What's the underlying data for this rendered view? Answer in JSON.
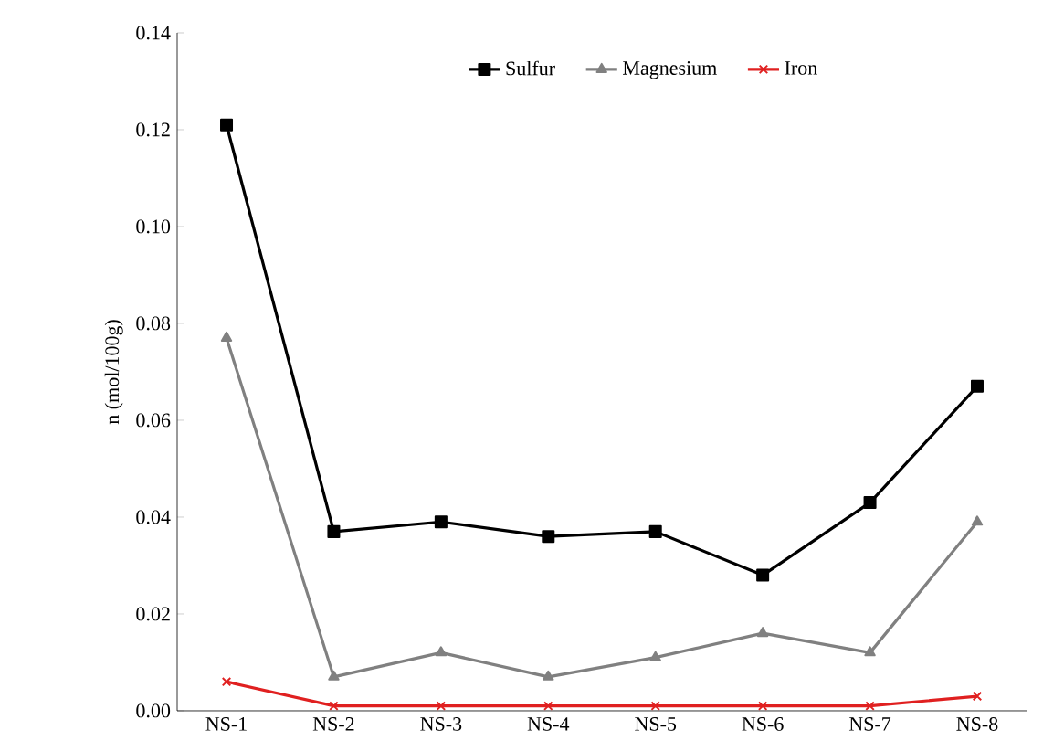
{
  "chart_data": {
    "type": "line",
    "ylabel": "n  (mol/100g)",
    "categories": [
      "NS-1",
      "NS-2",
      "NS-3",
      "NS-4",
      "NS-5",
      "NS-6",
      "NS-7",
      "NS-8"
    ],
    "series": [
      {
        "name": "Sulfur",
        "color": "#000000",
        "marker": "square",
        "values": [
          0.121,
          0.037,
          0.039,
          0.036,
          0.037,
          0.028,
          0.043,
          0.067
        ]
      },
      {
        "name": "Magnesium",
        "color": "#808080",
        "marker": "triangle",
        "values": [
          0.077,
          0.007,
          0.012,
          0.007,
          0.011,
          0.016,
          0.012,
          0.039
        ]
      },
      {
        "name": "Iron",
        "color": "#e02020",
        "marker": "cross",
        "values": [
          0.006,
          0.001,
          0.001,
          0.001,
          0.001,
          0.001,
          0.001,
          0.003
        ]
      }
    ],
    "ylim": [
      0,
      0.14
    ],
    "yticks": [
      {
        "value": 0,
        "label": "0.00"
      },
      {
        "value": 0.02,
        "label": "0.02"
      },
      {
        "value": 0.04,
        "label": "0.04"
      },
      {
        "value": 0.06,
        "label": "0.06"
      },
      {
        "value": 0.08,
        "label": "0.08"
      },
      {
        "value": 0.1,
        "label": "0.10"
      },
      {
        "value": 0.12,
        "label": "0.12"
      },
      {
        "value": 0.14,
        "label": "0.14"
      }
    ],
    "legend": "top",
    "grid": false,
    "line_style": "solid"
  }
}
